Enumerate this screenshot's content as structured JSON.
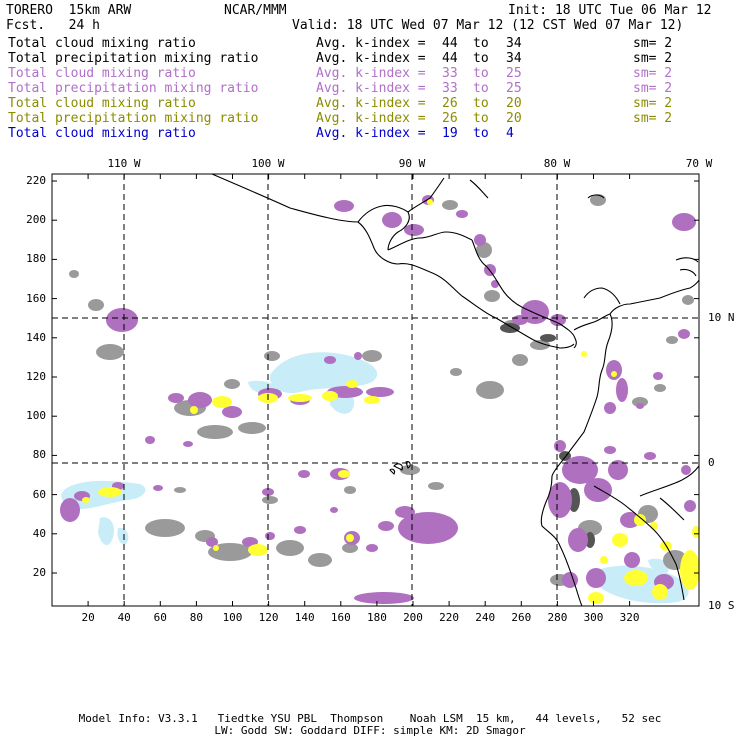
{
  "header": {
    "model": "TORERO  15km ARW",
    "center": "NCAR/MMM",
    "init": "Init: 18 UTC Tue 06 Mar 12",
    "fcst": "Fcst.   24 h",
    "valid": "Valid: 18 UTC Wed 07 Mar 12 (12 CST Wed 07 Mar 12)"
  },
  "legend": [
    {
      "name": "Total cloud mixing ratio",
      "avg": "Avg. k-index =",
      "hi": "44",
      "to": "to",
      "lo": "34",
      "sm": "sm= 2",
      "color": "#000000"
    },
    {
      "name": "Total precipitation mixing ratio",
      "avg": "Avg. k-index =",
      "hi": "44",
      "to": "to",
      "lo": "34",
      "sm": "sm= 2",
      "color": "#000000"
    },
    {
      "name": "Total cloud mixing ratio",
      "avg": "Avg. k-index =",
      "hi": "33",
      "to": "to",
      "lo": "25",
      "sm": "sm= 2",
      "color": "#b070c8"
    },
    {
      "name": "Total precipitation mixing ratio",
      "avg": "Avg. k-index =",
      "hi": "33",
      "to": "to",
      "lo": "25",
      "sm": "sm= 2",
      "color": "#b070c8"
    },
    {
      "name": "Total cloud mixing ratio",
      "avg": "Avg. k-index =",
      "hi": "26",
      "to": "to",
      "lo": "20",
      "sm": "sm= 2",
      "color": "#8c8c00"
    },
    {
      "name": "Total precipitation mixing ratio",
      "avg": "Avg. k-index =",
      "hi": "26",
      "to": "to",
      "lo": "20",
      "sm": "sm= 2",
      "color": "#8c8c00"
    },
    {
      "name": "Total cloud mixing ratio",
      "avg": "Avg. k-index =",
      "hi": "19",
      "to": "to",
      "lo": "4",
      "sm": "",
      "color": "#0000cc"
    }
  ],
  "map": {
    "lon_labels": [
      "110 W",
      "100 W",
      "90 W",
      "80 W",
      "70 W"
    ],
    "lat_labels": [
      "10 N",
      "0",
      "10 S"
    ],
    "x_ticks": [
      "20",
      "40",
      "60",
      "80",
      "100",
      "120",
      "140",
      "160",
      "180",
      "200",
      "220",
      "240",
      "260",
      "280",
      "300",
      "320"
    ],
    "y_ticks": [
      "220",
      "200",
      "180",
      "160",
      "140",
      "120",
      "100",
      "80",
      "60",
      "40",
      "20"
    ],
    "colors": {
      "gray": "#9a9a9a",
      "dark_gray": "#555555",
      "purple": "#b070c0",
      "yellow": "#ffff33",
      "light_blue": "#c8ecf8",
      "coast": "#000000"
    }
  },
  "footer": {
    "line1": "Model Info: V3.3.1   Tiedtke YSU PBL  Thompson    Noah LSM  15 km,   44 levels,   52 sec",
    "line2": "LW: Godd SW: Goddard DIFF: simple KM: 2D Smagor"
  }
}
